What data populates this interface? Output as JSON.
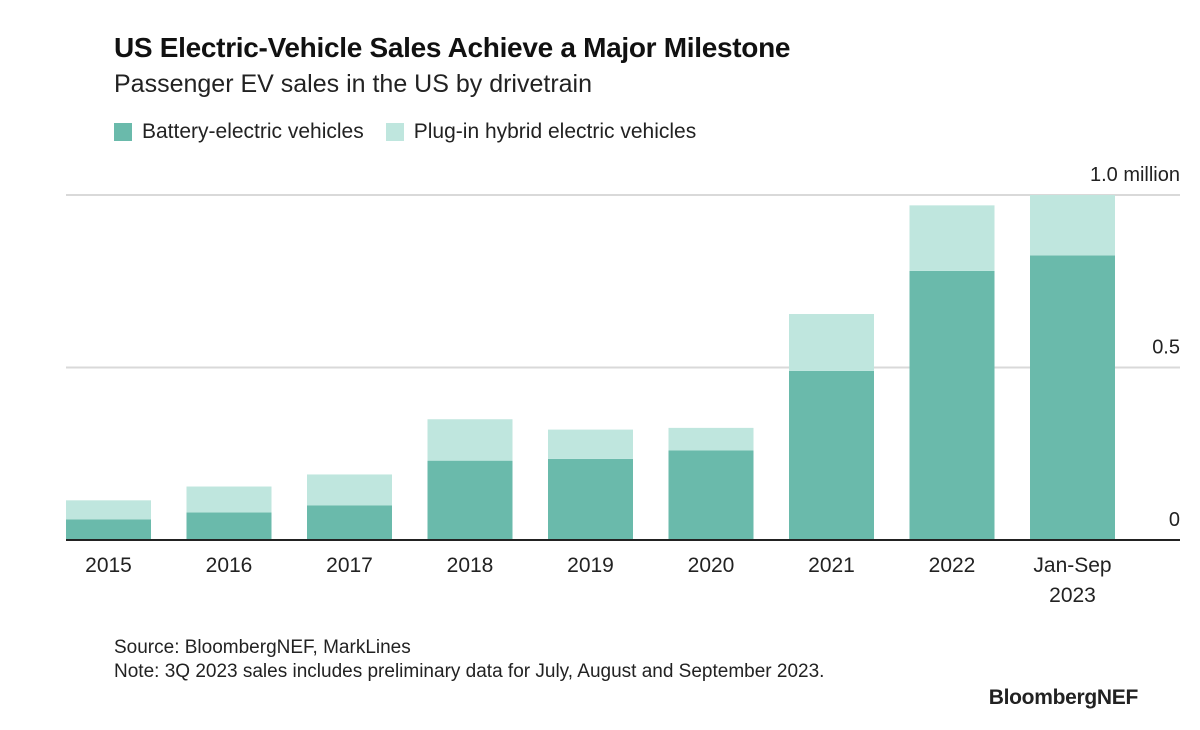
{
  "header": {
    "title": "US Electric-Vehicle Sales Achieve a Major Milestone",
    "subtitle": "Passenger EV sales in the US by drivetrain"
  },
  "legend": {
    "bev_label": "Battery-electric vehicles",
    "phev_label": "Plug-in hybrid electric vehicles"
  },
  "footer": {
    "source": "Source: BloombergNEF, MarkLines",
    "note": "Note: 3Q 2023 sales includes preliminary data for July, August and September 2023.",
    "brand": "BloombergNEF"
  },
  "colors": {
    "bev": "#6abaab",
    "phev": "#bfe6de",
    "grid": "#d9d9d9",
    "axis": "#222222"
  },
  "chart_data": {
    "type": "bar",
    "stacked": true,
    "categories": [
      "2015",
      "2016",
      "2017",
      "2018",
      "2019",
      "2020",
      "2021",
      "2022",
      "Jan-Sep\n2023"
    ],
    "series": [
      {
        "name": "Battery-electric vehicles",
        "values": [
          0.06,
          0.08,
          0.1,
          0.23,
          0.235,
          0.26,
          0.49,
          0.78,
          0.825
        ]
      },
      {
        "name": "Plug-in hybrid electric vehicles",
        "values": [
          0.055,
          0.075,
          0.09,
          0.12,
          0.085,
          0.065,
          0.165,
          0.19,
          0.175
        ]
      }
    ],
    "title": "US Electric-Vehicle Sales Achieve a Major Milestone",
    "subtitle": "Passenger EV sales in the US by drivetrain",
    "xlabel": "",
    "ylabel": "",
    "ylim": [
      0,
      1.0
    ],
    "yticks": [
      {
        "value": 0,
        "label": "0"
      },
      {
        "value": 0.5,
        "label": "0.5"
      },
      {
        "value": 1.0,
        "label": "1.0 million"
      }
    ],
    "y_axis_side": "right",
    "grid": true,
    "legend_position": "top-left"
  }
}
